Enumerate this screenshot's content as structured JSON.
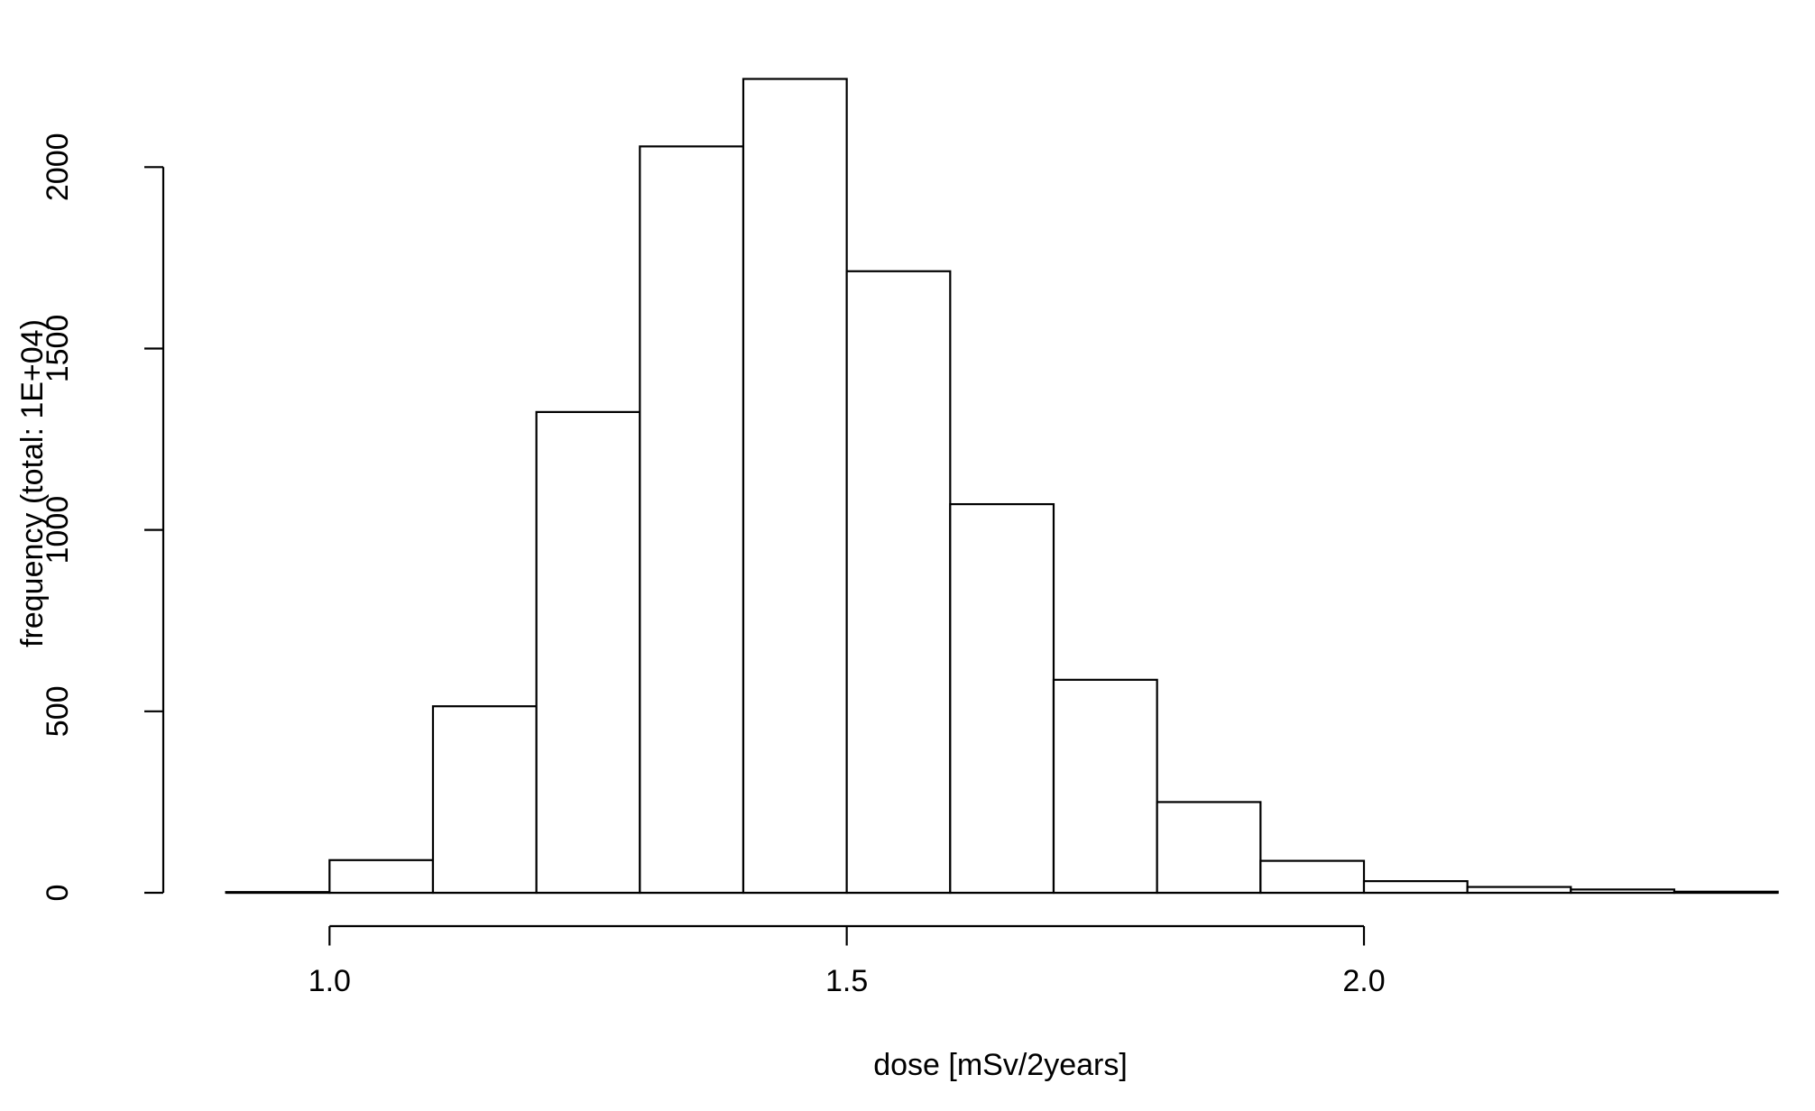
{
  "chart_data": {
    "type": "bar",
    "subtype": "histogram",
    "title": "",
    "xlabel": "dose [mSv/2years]",
    "ylabel": "frequency (total: 1E+04)",
    "bin_width": 0.1,
    "bin_edges": [
      0.9,
      1.0,
      1.1,
      1.2,
      1.3,
      1.4,
      1.5,
      1.6,
      1.7,
      1.8,
      1.9,
      2.0,
      2.1,
      2.2,
      2.3,
      2.4
    ],
    "counts": [
      2,
      90,
      514,
      1325,
      2057,
      2243,
      1713,
      1071,
      587,
      250,
      88,
      32,
      16,
      9,
      3
    ],
    "x_ticks": [
      {
        "value": 1.0,
        "label": "1.0"
      },
      {
        "value": 1.5,
        "label": "1.5"
      },
      {
        "value": 2.0,
        "label": "2.0"
      }
    ],
    "y_ticks": [
      {
        "value": 0,
        "label": "0"
      },
      {
        "value": 500,
        "label": "500"
      },
      {
        "value": 1000,
        "label": "1000"
      },
      {
        "value": 1500,
        "label": "1500"
      },
      {
        "value": 2000,
        "label": "2000"
      }
    ],
    "xlim": [
      0.9,
      2.4
    ],
    "ylim": [
      0,
      2000
    ],
    "grid": false,
    "legend": null,
    "bar_fill": "#ffffff",
    "bar_stroke": "#000000",
    "axis_color": "#000000",
    "background": "#ffffff"
  }
}
